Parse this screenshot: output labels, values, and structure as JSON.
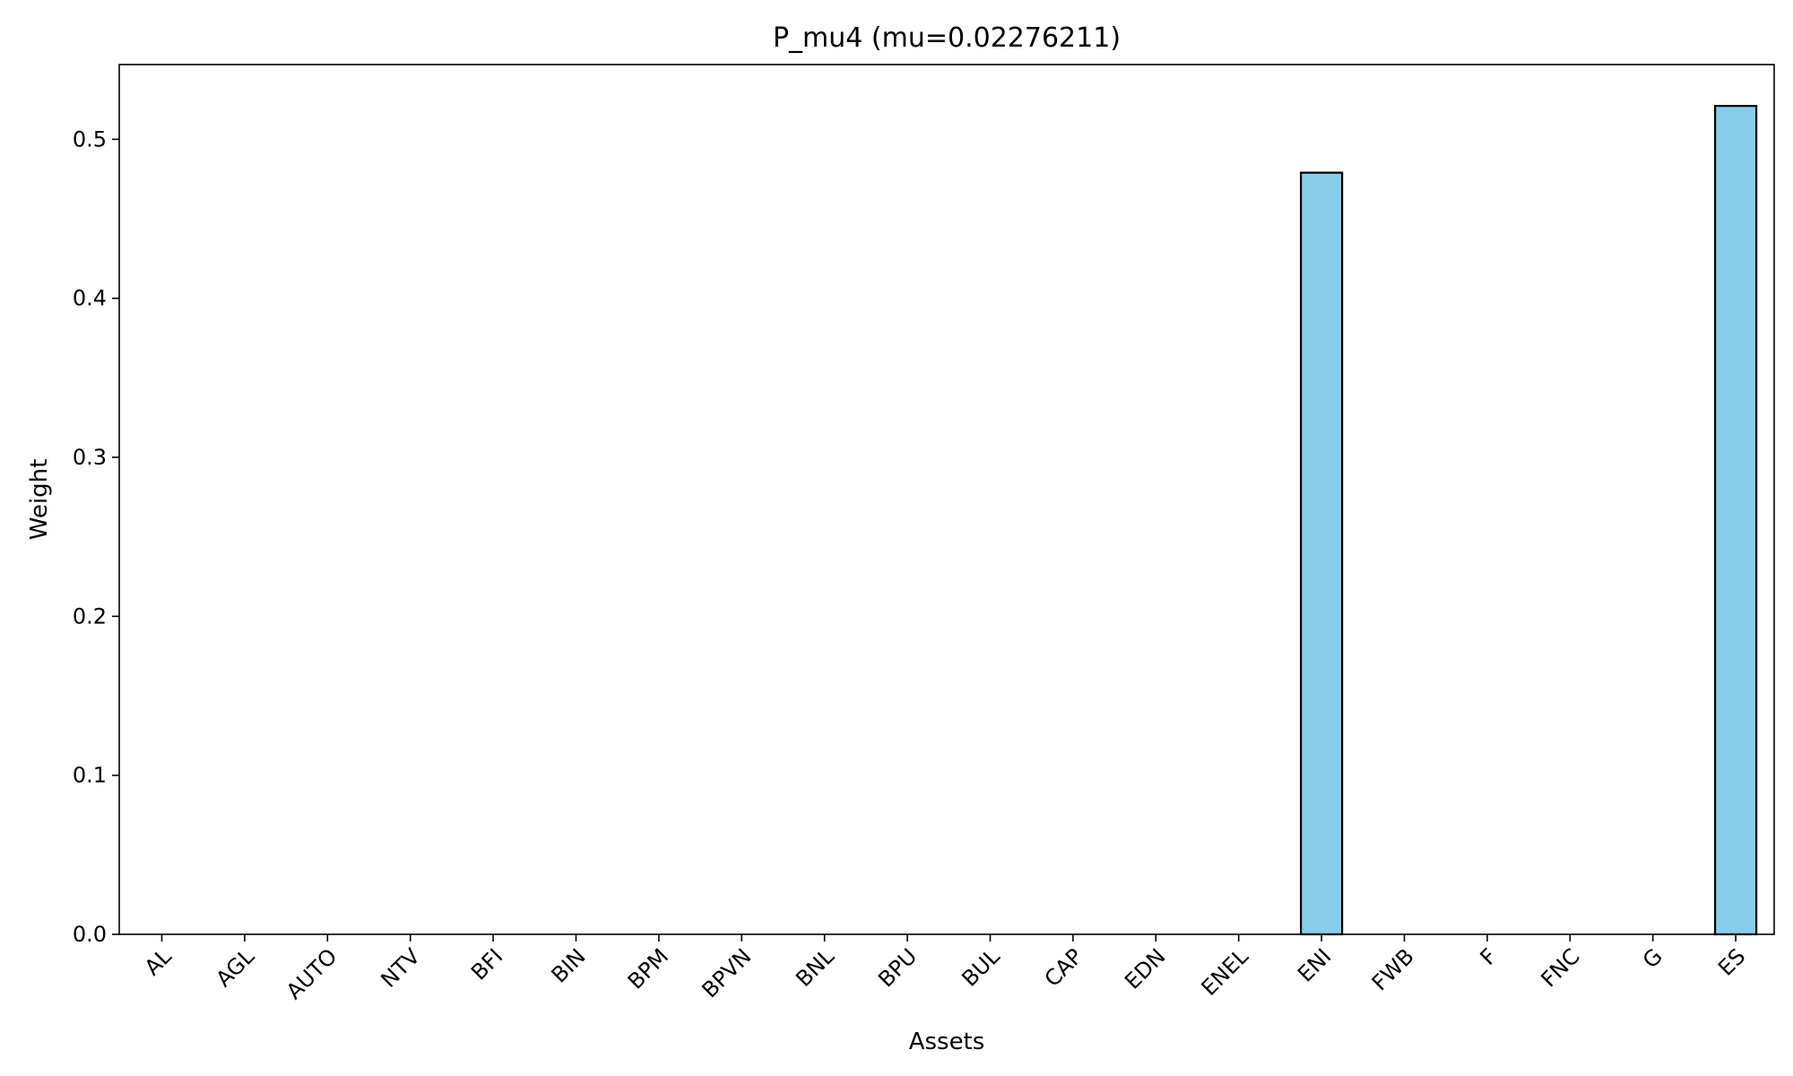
{
  "chart_data": {
    "type": "bar",
    "title": "P_mu4 (mu=0.02276211)",
    "xlabel": "Assets",
    "ylabel": "Weight",
    "categories": [
      "AL",
      "AGL",
      "AUTO",
      "NTV",
      "BFI",
      "BIN",
      "BPM",
      "BPVN",
      "BNL",
      "BPU",
      "BUL",
      "CAP",
      "EDN",
      "ENEL",
      "ENI",
      "FWB",
      "F",
      "FNC",
      "G",
      "ES"
    ],
    "values": [
      0,
      0,
      0,
      0,
      0,
      0,
      0,
      0,
      0,
      0,
      0,
      0,
      0,
      0,
      0.479,
      0,
      0,
      0,
      0,
      0.521
    ],
    "yticks": [
      "0.0",
      "0.1",
      "0.2",
      "0.3",
      "0.4",
      "0.5"
    ],
    "ylim": [
      0,
      0.547
    ],
    "grid": false,
    "legend": "none",
    "bar_color": "#87CEEB",
    "edge_color": "#000000"
  }
}
